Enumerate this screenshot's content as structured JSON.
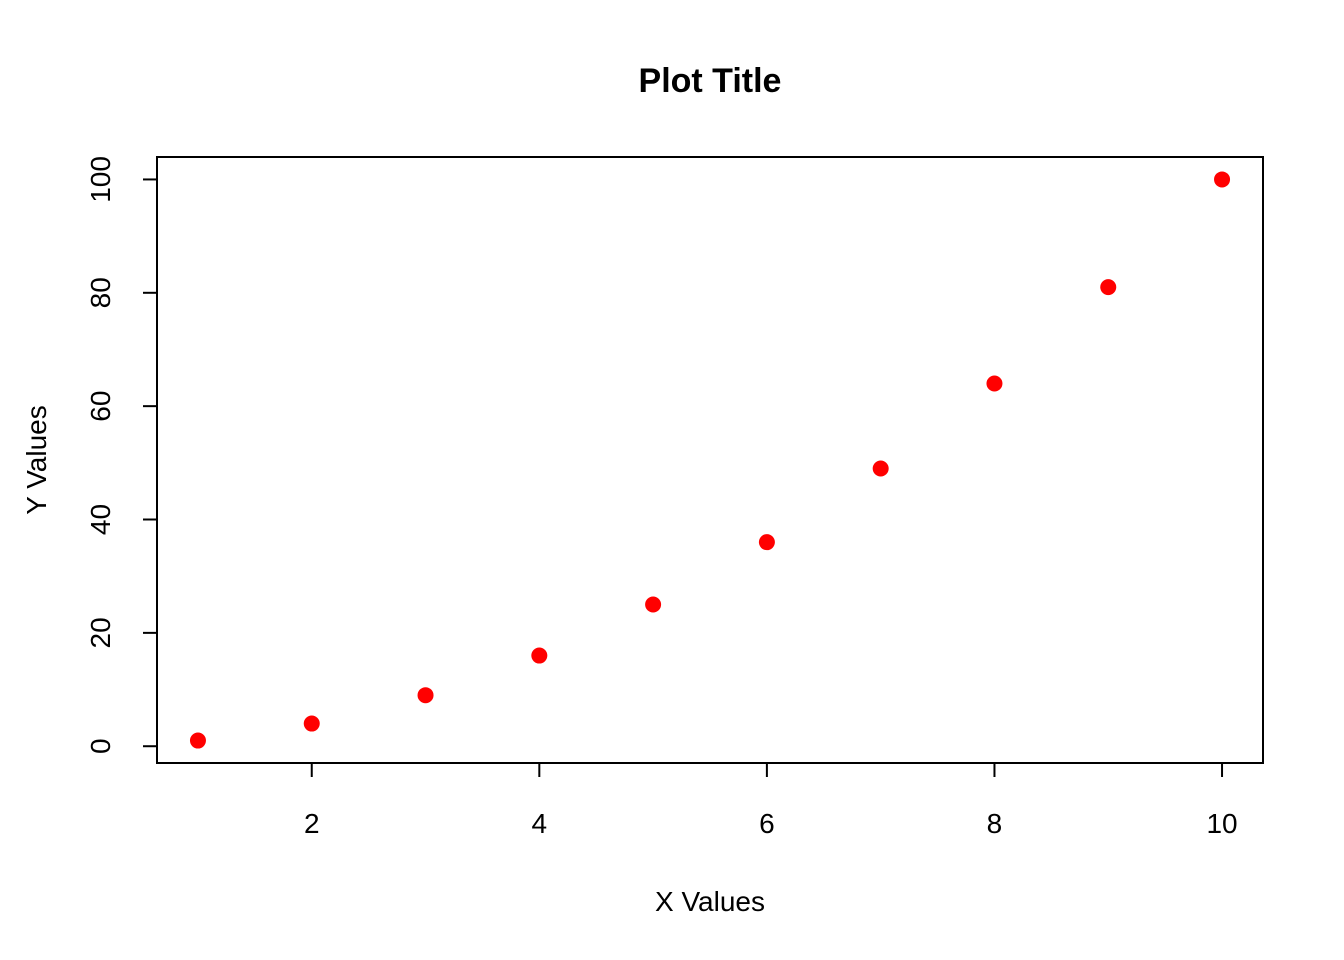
{
  "chart_data": {
    "type": "scatter",
    "title": "Plot Title",
    "xlabel": "X Values",
    "ylabel": "Y Values",
    "x": [
      1,
      2,
      3,
      4,
      5,
      6,
      7,
      8,
      9,
      10
    ],
    "y": [
      1,
      4,
      9,
      16,
      25,
      36,
      49,
      64,
      81,
      100
    ],
    "xlim": [
      0.64,
      10.36
    ],
    "ylim": [
      -2.96,
      103.96
    ],
    "xticks": [
      2,
      4,
      6,
      8,
      10
    ],
    "yticks": [
      0,
      20,
      40,
      60,
      80,
      100
    ],
    "xtick_labels": [
      "2",
      "4",
      "6",
      "8",
      "10"
    ],
    "ytick_labels": [
      "0",
      "20",
      "40",
      "60",
      "80",
      "100"
    ],
    "grid": false,
    "legend": "none",
    "point_color": "#ff0000"
  }
}
